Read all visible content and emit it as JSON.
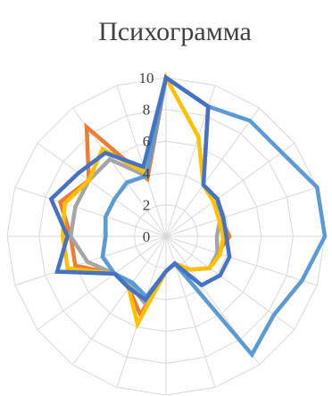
{
  "chart_data": {
    "type": "radar",
    "title": "Психограмма",
    "scale": {
      "min": 0,
      "max": 10,
      "step": 2
    },
    "tick_labels": [
      "0",
      "2",
      "4",
      "6",
      "8",
      "10"
    ],
    "axes_count": 20,
    "grid": true,
    "series": [
      {
        "color": "#ED7D31",
        "values": [
          10,
          8.6,
          4,
          4,
          3.6,
          4,
          3.4,
          3.4,
          2.6,
          1.8,
          2.2,
          5.2,
          4,
          4,
          6,
          6,
          7,
          6,
          8.5,
          3.8
        ]
      },
      {
        "color": "#A5A5A5",
        "values": [
          10,
          8.6,
          4,
          4,
          3.6,
          3.2,
          3.4,
          3.4,
          2.6,
          1.8,
          2.2,
          4.4,
          3.8,
          4,
          5.2,
          6,
          6,
          6,
          6,
          4
        ]
      },
      {
        "color": "#FFC000",
        "values": [
          10,
          6.6,
          4,
          3.7,
          3.5,
          3.6,
          3.6,
          3.4,
          2.6,
          1.8,
          2.2,
          5.8,
          4,
          4,
          6.5,
          6.5,
          6.7,
          6,
          6.8,
          4.2
        ]
      },
      {
        "color": "#5B9BD5",
        "values": [
          10,
          8.6,
          9,
          9,
          10,
          10,
          9,
          8.4,
          9.2,
          1.8,
          2.2,
          4,
          3.6,
          4,
          4.2,
          3.8,
          4,
          4,
          4.2,
          4
        ]
      },
      {
        "color": "#4472C4",
        "values": [
          10,
          8.6,
          4,
          4,
          3.8,
          3.8,
          4.2,
          4.2,
          3.8,
          1.8,
          2.2,
          4.2,
          4,
          4,
          7.2,
          6.2,
          7.6,
          6.8,
          6.5,
          4.6
        ]
      }
    ]
  }
}
